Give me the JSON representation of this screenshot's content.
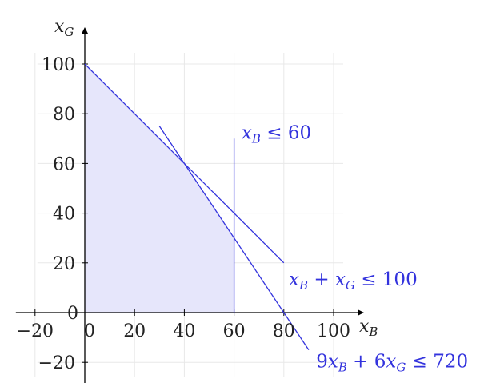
{
  "chart_data": {
    "type": "line",
    "title": "",
    "xlabel": "x",
    "xlabel_sub": "B",
    "ylabel": "x",
    "ylabel_sub": "G",
    "xlim": [
      -20,
      100
    ],
    "ylim": [
      -20,
      100
    ],
    "x_ticks": [
      -20,
      0,
      20,
      40,
      60,
      80,
      100
    ],
    "y_ticks": [
      -20,
      0,
      20,
      40,
      60,
      80,
      100
    ],
    "x_tick_labels": [
      "−20",
      "0",
      "20",
      "40",
      "60",
      "80",
      "100"
    ],
    "y_tick_labels": [
      "−20",
      "0",
      "20",
      "40",
      "60",
      "80",
      "100"
    ],
    "grid": true,
    "colors": {
      "constraint": "#3333dd",
      "feasible_fill": "#e6e6fb",
      "grid": "#e8e8e8",
      "axis": "#000000"
    },
    "feasible_region": [
      [
        0,
        0
      ],
      [
        60,
        0
      ],
      [
        60,
        30
      ],
      [
        40,
        60
      ],
      [
        0,
        100
      ]
    ],
    "series": [
      {
        "label_parts": [
          {
            "t": "x",
            "style": "italic"
          },
          {
            "t": "B",
            "style": "sub"
          },
          {
            "t": " ≤ 60",
            "style": "normal"
          }
        ],
        "points": [
          [
            60,
            0
          ],
          [
            60,
            70
          ]
        ],
        "label_anchor": [
          63,
          70
        ]
      },
      {
        "label_parts": [
          {
            "t": "x",
            "style": "italic"
          },
          {
            "t": "B",
            "style": "sub"
          },
          {
            "t": " + ",
            "style": "normal"
          },
          {
            "t": "x",
            "style": "italic"
          },
          {
            "t": "G",
            "style": "sub"
          },
          {
            "t": " ≤ 100",
            "style": "normal"
          }
        ],
        "points": [
          [
            0,
            100
          ],
          [
            80,
            20
          ]
        ],
        "label_anchor": [
          82,
          11
        ]
      },
      {
        "label_parts": [
          {
            "t": "9",
            "style": "normal"
          },
          {
            "t": "x",
            "style": "italic"
          },
          {
            "t": "B",
            "style": "sub"
          },
          {
            "t": " + 6",
            "style": "normal"
          },
          {
            "t": "x",
            "style": "italic"
          },
          {
            "t": "G",
            "style": "sub"
          },
          {
            "t": " ≤ 720",
            "style": "normal"
          }
        ],
        "points": [
          [
            30,
            75
          ],
          [
            40,
            60
          ],
          [
            90,
            -15
          ]
        ],
        "label_anchor": [
          93,
          -22
        ]
      }
    ]
  }
}
